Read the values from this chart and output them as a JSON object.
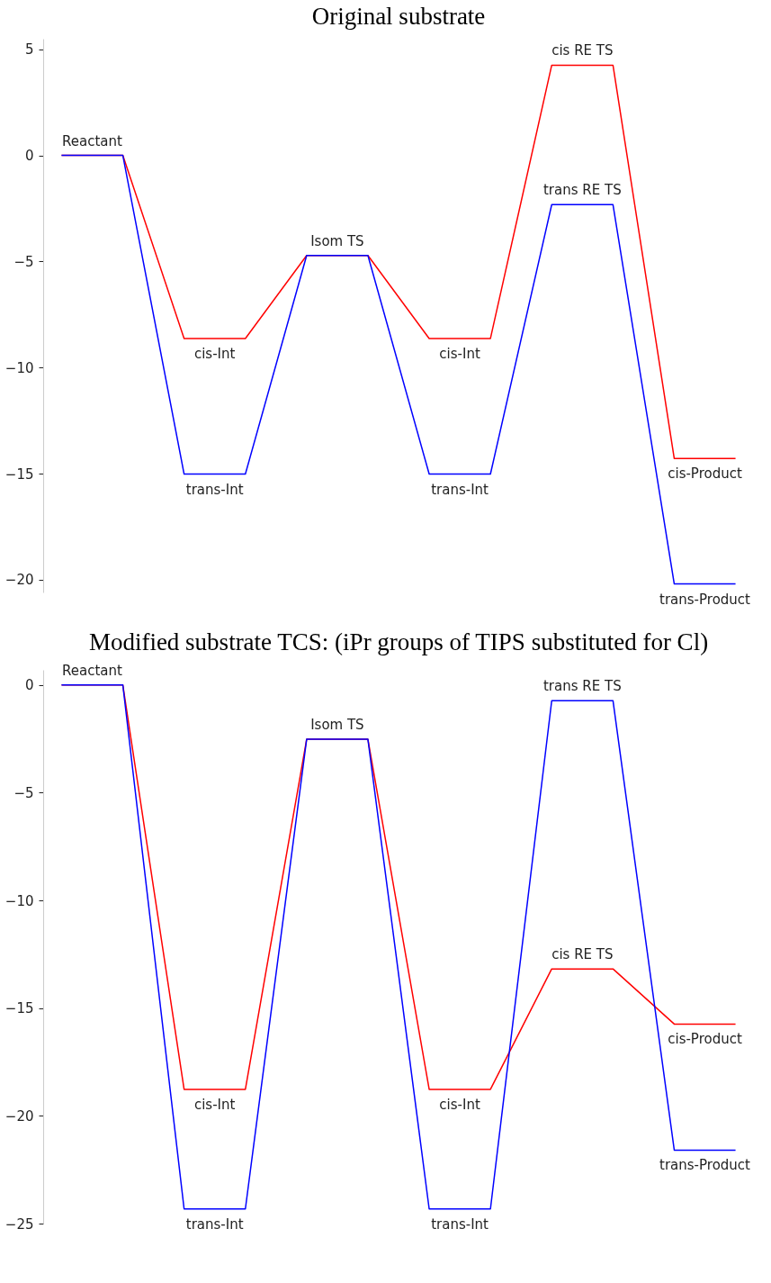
{
  "chart_data": [
    {
      "type": "line",
      "title": "Original substrate",
      "categories": [
        null,
        null,
        null,
        null,
        null,
        null,
        null,
        null,
        null,
        null,
        null,
        null
      ],
      "ylim": [
        -20.6,
        5.5
      ],
      "yticks": [
        -20,
        -15,
        -10,
        -5,
        0,
        5
      ],
      "tick_labels": "y",
      "line_style": "solid",
      "series": [
        {
          "color": "#ff0000",
          "values": [
            0,
            0,
            -8.63,
            -8.63,
            -4.72,
            -4.72,
            -8.63,
            -8.63,
            4.25,
            4.25,
            -14.29,
            -14.29
          ]
        },
        {
          "color": "#0000ff",
          "values": [
            0,
            0,
            -15.02,
            -15.02,
            -4.72,
            -4.72,
            -15.02,
            -15.02,
            -2.32,
            -2.32,
            -20.2,
            -20.2
          ]
        }
      ],
      "annotations": [
        {
          "text": "Reactant",
          "y": 0
        },
        {
          "text": "cis-Int",
          "y": -8.63
        },
        {
          "text": "trans-Int",
          "y": -15.02
        },
        {
          "text": "Isom TS",
          "y": -4.72
        },
        {
          "text": "cis-Int",
          "y": -8.63
        },
        {
          "text": "trans-Int",
          "y": -15.02
        },
        {
          "text": "cis RE TS",
          "y": 4.25
        },
        {
          "text": "trans RE TS",
          "y": -2.32
        },
        {
          "text": "cis-Product",
          "y": -14.29
        },
        {
          "text": "trans-Product",
          "y": -20.2
        }
      ]
    },
    {
      "type": "line",
      "title": "Modified substrate TCS: (iPr groups of TIPS substituted for Cl)",
      "categories": [
        null,
        null,
        null,
        null,
        null,
        null,
        null,
        null,
        null,
        null,
        null,
        null
      ],
      "ylim": [
        -25,
        0.7
      ],
      "yticks": [
        -25,
        -20,
        -15,
        -10,
        -5,
        0
      ],
      "tick_labels": "y",
      "line_style": "solid",
      "series": [
        {
          "color": "#ff0000",
          "values": [
            0,
            0,
            -18.77,
            -18.77,
            -2.52,
            -2.52,
            -18.77,
            -18.77,
            -13.18,
            -13.18,
            -15.74,
            -15.74
          ]
        },
        {
          "color": "#0000ff",
          "values": [
            0,
            0,
            -24.32,
            -24.32,
            -2.52,
            -2.52,
            -24.32,
            -24.32,
            -0.73,
            -0.73,
            -21.59,
            -21.59
          ]
        }
      ],
      "annotations": [
        {
          "text": "Reactant",
          "y": 0
        },
        {
          "text": "cis-Int",
          "y": -18.77
        },
        {
          "text": "trans-Int",
          "y": -24.32
        },
        {
          "text": "Isom TS",
          "y": -2.52
        },
        {
          "text": "cis-Int",
          "y": -18.77
        },
        {
          "text": "trans-Int",
          "y": -24.32
        },
        {
          "text": "trans RE TS",
          "y": -0.73
        },
        {
          "text": "cis RE TS",
          "y": -13.18
        },
        {
          "text": "cis-Product",
          "y": -15.74
        },
        {
          "text": "trans-Product",
          "y": -21.59
        }
      ]
    }
  ]
}
